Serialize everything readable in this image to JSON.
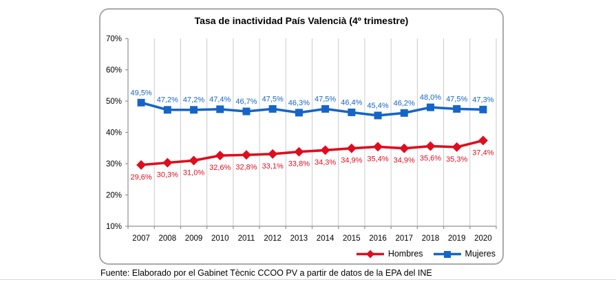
{
  "chart_data": {
    "type": "line",
    "title": "Tasa de inactividad País Valencià (4º trimestre)",
    "categories": [
      "2007",
      "2008",
      "2009",
      "2010",
      "2011",
      "2012",
      "2013",
      "2014",
      "2015",
      "2016",
      "2017",
      "2018",
      "2019",
      "2020"
    ],
    "series": [
      {
        "name": "Hombres",
        "marker": "diamond",
        "color": "#e00d1d",
        "values": [
          29.6,
          30.3,
          31.0,
          32.6,
          32.8,
          33.1,
          33.8,
          34.3,
          34.9,
          35.4,
          34.9,
          35.6,
          35.3,
          37.4
        ],
        "labels": [
          "29,6%",
          "30,3%",
          "31,0%",
          "32,6%",
          "32,8%",
          "33,1%",
          "33,8%",
          "34,3%",
          "34,9%",
          "35,4%",
          "34,9%",
          "35,6%",
          "35,3%",
          "37,4%"
        ],
        "label_position": "below"
      },
      {
        "name": "Mujeres",
        "marker": "square",
        "color": "#1565c8",
        "values": [
          49.5,
          47.2,
          47.2,
          47.4,
          46.7,
          47.5,
          46.3,
          47.5,
          46.4,
          45.4,
          46.2,
          48.0,
          47.5,
          47.3
        ],
        "labels": [
          "49,5%",
          "47,2%",
          "47,2%",
          "47,4%",
          "46,7%",
          "47,5%",
          "46,3%",
          "47,5%",
          "46,4%",
          "45,4%",
          "46,2%",
          "48,0%",
          "47,5%",
          "47,3%"
        ],
        "label_position": "above"
      }
    ],
    "ylim": [
      10,
      70
    ],
    "ytick_step": 10,
    "ytick_labels": [
      "10%",
      "20%",
      "30%",
      "40%",
      "50%",
      "60%",
      "70%"
    ],
    "grid": "vertical-category-gridlines",
    "grid_color": "#c9c9c9",
    "axis_color": "#8f8f8f",
    "legend_position": "bottom-right"
  },
  "footer": {
    "source": "Fuente: Elaborado por el Gabinet Tècnic CCOO PV a partir de datos de la EPA del INE"
  }
}
